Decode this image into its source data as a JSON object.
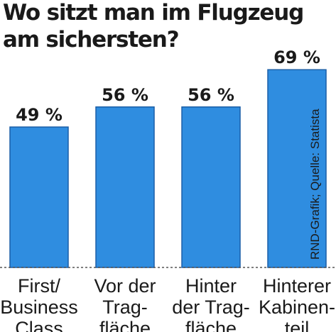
{
  "chart_data": {
    "type": "bar",
    "title": "Wo sitzt man im Flugzeug am sichersten?",
    "title_lines": [
      "Wo sitzt man im Flugzeug",
      "am sichersten?"
    ],
    "categories": [
      "First/ Business Class",
      "Vor der Tragfläche",
      "Hinter der Tragfläche",
      "Hinterer Kabinenteil"
    ],
    "category_lines": [
      [
        "First/",
        "Business",
        "Class"
      ],
      [
        "Vor der",
        "Trag-",
        "fläche"
      ],
      [
        "Hinter",
        "der Trag-",
        "fläche"
      ],
      [
        "Hinterer",
        "Kabinen-",
        "teil"
      ]
    ],
    "values": [
      49,
      56,
      56,
      69
    ],
    "value_labels": [
      "49 %",
      "56 %",
      "56 %",
      "69 %"
    ],
    "ylim": [
      0,
      100
    ],
    "grid": false,
    "bar_color": "#2f8de0",
    "bar_border_color": "#1b5fa8",
    "source": "RND-Grafik; Quelle: Statista"
  }
}
